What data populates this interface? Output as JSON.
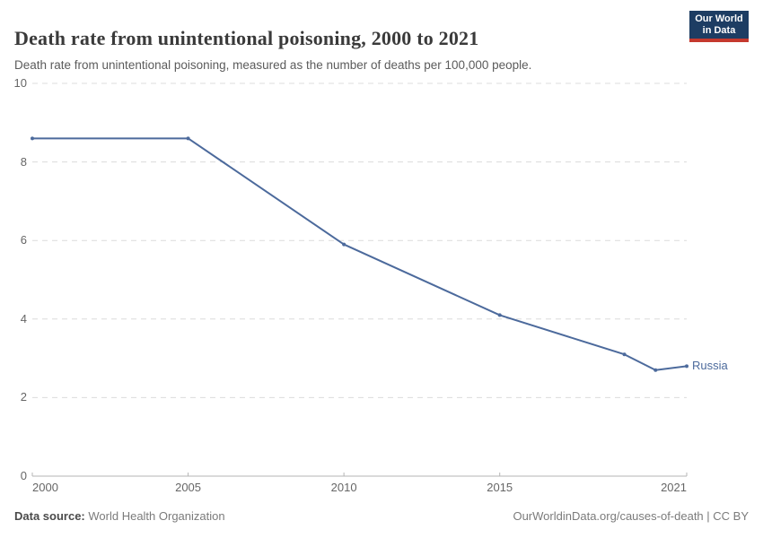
{
  "chart_data": {
    "type": "line",
    "title": "Death rate from unintentional poisoning, 2000 to 2021",
    "subtitle": "Death rate from unintentional poisoning, measured as the number of deaths per 100,000 people.",
    "xlabel": "",
    "ylabel": "",
    "x": [
      2000,
      2005,
      2010,
      2015,
      2019,
      2020,
      2021
    ],
    "series": [
      {
        "name": "Russia",
        "values": [
          8.6,
          8.6,
          5.9,
          4.1,
          3.1,
          2.7,
          2.8
        ],
        "color": "#4c6a9c"
      }
    ],
    "xlim": [
      2000,
      2021
    ],
    "ylim": [
      0,
      10
    ],
    "x_ticks": [
      2000,
      2005,
      2010,
      2015,
      2021
    ],
    "y_ticks": [
      0,
      2,
      4,
      6,
      8,
      10
    ],
    "grid": "horizontal-dashed",
    "legend_position": "end-of-line-label",
    "marker": "dot"
  },
  "logo": {
    "line1": "Our World",
    "line2": "in Data"
  },
  "footer": {
    "source_label": "Data source:",
    "source_value": "World Health Organization",
    "credit": "OurWorldinData.org/causes-of-death | CC BY"
  },
  "colors": {
    "line": "#4c6a9c",
    "grid": "#dcdcdc",
    "axis": "#b5b5b5",
    "tick_text": "#666666",
    "title_text": "#3a3a3a",
    "subtitle_text": "#5b5b5b",
    "logo_navy": "#1d3d63",
    "logo_red": "#c5392e"
  }
}
